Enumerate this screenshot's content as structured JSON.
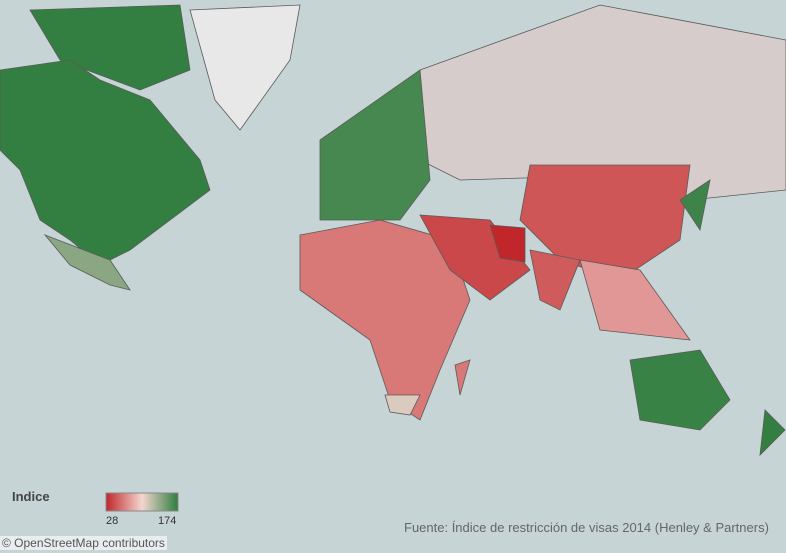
{
  "map_data": {
    "type": "choropleth",
    "legend": {
      "title": "Indice",
      "min": 28,
      "max": 174,
      "colors": [
        "#c0262a",
        "#f3d6d0",
        "#2e7d3e"
      ]
    },
    "values": [
      172,
      172,
      140,
      165,
      62,
      42,
      28,
      48,
      50,
      75,
      170,
      168,
      110,
      62,
      172
    ],
    "no_data_colors": [
      "#d6cccc",
      "#e8e8e8"
    ],
    "source": "Fuente: Índice de restricción de visas 2014 (Henley & Partners)",
    "attribution": "© OpenStreetMap contributors"
  }
}
